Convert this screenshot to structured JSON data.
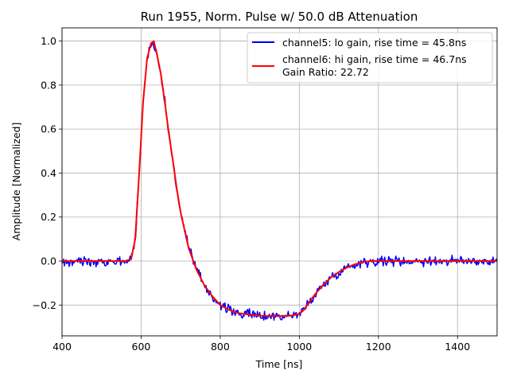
{
  "chart_data": {
    "type": "line",
    "title": "Run 1955, Norm. Pulse w/ 50.0 dB Attenuation",
    "xlabel": "Time [ns]",
    "ylabel": "Amplitude [Normalized]",
    "xlim": [
      400,
      1500
    ],
    "ylim": [
      -0.34,
      1.06
    ],
    "grid": true,
    "legend_position": "top-right",
    "x_ticks": [
      400,
      600,
      800,
      1000,
      1200,
      1400
    ],
    "x_tick_labels": [
      "400",
      "600",
      "800",
      "1000",
      "1200",
      "1400"
    ],
    "y_ticks": [
      -0.2,
      0.0,
      0.2,
      0.4,
      0.6,
      0.8,
      1.0
    ],
    "y_tick_labels": [
      "−0.2",
      "0.0",
      "0.2",
      "0.4",
      "0.6",
      "0.8",
      "1.0"
    ],
    "legend_extra_text": "Gain Ratio: 22.72",
    "series": [
      {
        "name": "channel5: lo gain, rise time = 45.8ns",
        "color": "#0000ff",
        "noisy": true,
        "x": [
          400,
          560,
          575,
          585,
          595,
          605,
          615,
          625,
          632,
          640,
          650,
          660,
          670,
          680,
          690,
          700,
          720,
          740,
          760,
          780,
          800,
          820,
          840,
          860,
          880,
          900,
          920,
          940,
          960,
          980,
          1000,
          1010,
          1020,
          1040,
          1060,
          1080,
          1100,
          1120,
          1140,
          1160,
          1180,
          1200,
          1250,
          1300,
          1350,
          1400,
          1450,
          1500
        ],
        "y": [
          0.0,
          0.0,
          0.01,
          0.1,
          0.4,
          0.72,
          0.92,
          0.99,
          0.99,
          0.94,
          0.85,
          0.72,
          0.58,
          0.46,
          0.33,
          0.22,
          0.06,
          -0.04,
          -0.11,
          -0.16,
          -0.2,
          -0.22,
          -0.235,
          -0.24,
          -0.245,
          -0.248,
          -0.25,
          -0.25,
          -0.25,
          -0.248,
          -0.24,
          -0.225,
          -0.2,
          -0.15,
          -0.11,
          -0.075,
          -0.05,
          -0.03,
          -0.015,
          -0.005,
          0.0,
          0.0,
          0.0,
          0.0,
          0.0,
          0.0,
          0.0,
          0.0
        ]
      },
      {
        "name": "channel6: hi gain, rise time = 46.7ns",
        "color": "#ff0000",
        "noisy": false,
        "x": [
          400,
          560,
          575,
          585,
          595,
          605,
          615,
          625,
          632,
          640,
          650,
          660,
          670,
          680,
          690,
          700,
          720,
          740,
          760,
          780,
          800,
          820,
          840,
          860,
          880,
          900,
          920,
          940,
          960,
          980,
          1000,
          1010,
          1020,
          1040,
          1060,
          1080,
          1100,
          1120,
          1140,
          1160,
          1180,
          1200,
          1250,
          1300,
          1350,
          1400,
          1450,
          1500
        ],
        "y": [
          0.0,
          0.0,
          0.01,
          0.1,
          0.4,
          0.72,
          0.92,
          0.99,
          1.0,
          0.94,
          0.85,
          0.72,
          0.58,
          0.46,
          0.33,
          0.22,
          0.06,
          -0.04,
          -0.11,
          -0.16,
          -0.2,
          -0.22,
          -0.235,
          -0.24,
          -0.245,
          -0.248,
          -0.25,
          -0.25,
          -0.25,
          -0.248,
          -0.24,
          -0.225,
          -0.2,
          -0.15,
          -0.11,
          -0.075,
          -0.05,
          -0.03,
          -0.015,
          -0.005,
          0.0,
          0.0,
          0.0,
          0.0,
          0.0,
          0.0,
          0.0,
          0.0
        ]
      }
    ]
  }
}
